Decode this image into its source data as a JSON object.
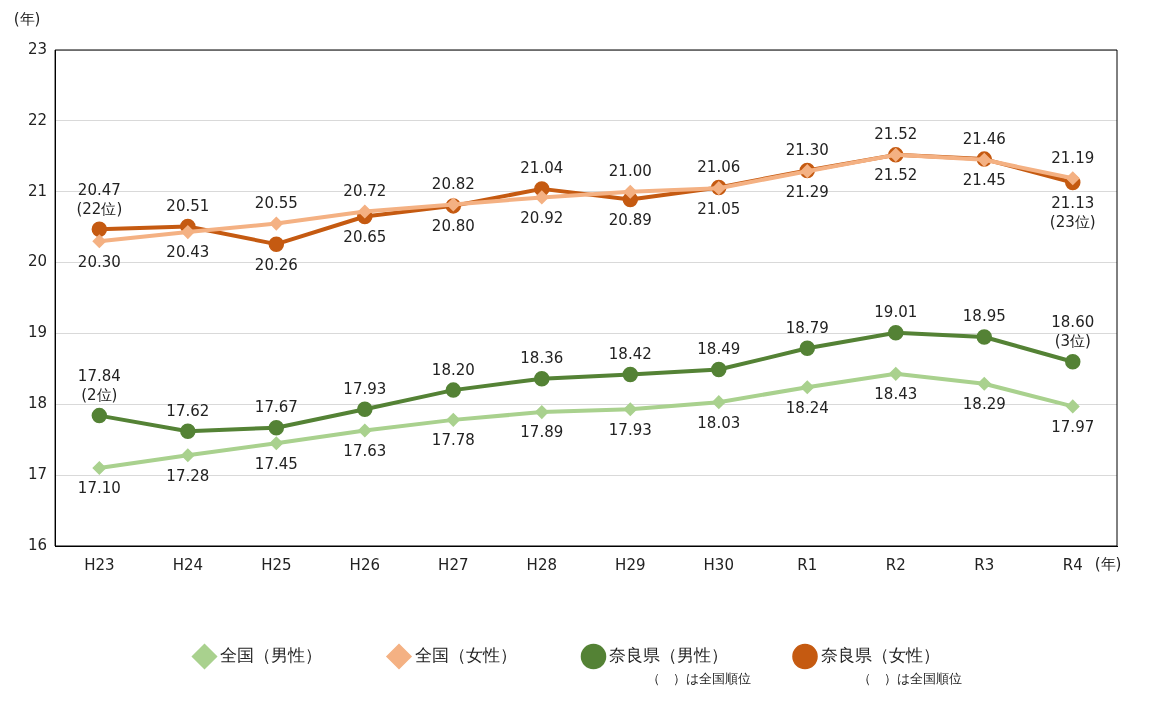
{
  "chart_data": {
    "type": "line",
    "ylabel": "(年)",
    "xlabel": "(年)",
    "categories": [
      "H23",
      "H24",
      "H25",
      "H26",
      "H27",
      "H28",
      "H29",
      "H30",
      "R1",
      "R2",
      "R3",
      "R4"
    ],
    "ylim": [
      16,
      23
    ],
    "yticks": [
      16,
      17,
      18,
      19,
      20,
      21,
      22,
      23
    ],
    "grid": "y",
    "legend": "bottom",
    "line_style": "solid",
    "series": [
      {
        "name": "全国（男性）",
        "color": "#a9d18e",
        "marker": "diamond",
        "values": [
          17.1,
          17.28,
          17.45,
          17.63,
          17.78,
          17.89,
          17.93,
          18.03,
          18.24,
          18.43,
          18.29,
          17.97
        ],
        "value_labels": [
          "17.10",
          "17.28",
          "17.45",
          "17.63",
          "17.78",
          "17.89",
          "17.93",
          "18.03",
          "18.24",
          "18.43",
          "18.29",
          "17.97"
        ]
      },
      {
        "name": "全国（女性）",
        "color": "#f4b183",
        "marker": "diamond",
        "values": [
          20.3,
          20.43,
          20.55,
          20.72,
          20.82,
          20.92,
          21.0,
          21.05,
          21.29,
          21.52,
          21.45,
          21.19
        ],
        "value_labels": [
          "20.30",
          "20.43",
          "20.55",
          "20.72",
          "20.82",
          "20.92",
          "21.00",
          "21.05",
          "21.29",
          "21.52",
          "21.45",
          "21.19"
        ]
      },
      {
        "name": "奈良県（男性）",
        "color": "#548235",
        "marker": "circle",
        "values": [
          17.84,
          17.62,
          17.67,
          17.93,
          18.2,
          18.36,
          18.42,
          18.49,
          18.79,
          19.01,
          18.95,
          18.6
        ],
        "value_labels": [
          "17.84\n(2位)",
          "17.62",
          "17.67",
          "17.93",
          "18.20",
          "18.36",
          "18.42",
          "18.49",
          "18.79",
          "19.01",
          "18.95",
          "18.60\n(3位)"
        ]
      },
      {
        "name": "奈良県（女性）",
        "color": "#c55a11",
        "marker": "circle",
        "values": [
          20.47,
          20.51,
          20.26,
          20.65,
          20.8,
          21.04,
          20.89,
          21.06,
          21.3,
          21.52,
          21.46,
          21.13
        ],
        "value_labels": [
          "20.47\n(22位)",
          "20.51",
          "20.26",
          "20.65",
          "20.80",
          "21.04",
          "20.89",
          "21.06",
          "21.30",
          "21.52",
          "21.46",
          "21.13\n(23位)"
        ]
      }
    ],
    "annotations": [
      "（　）は全国順位",
      "（　）は全国順位"
    ]
  }
}
